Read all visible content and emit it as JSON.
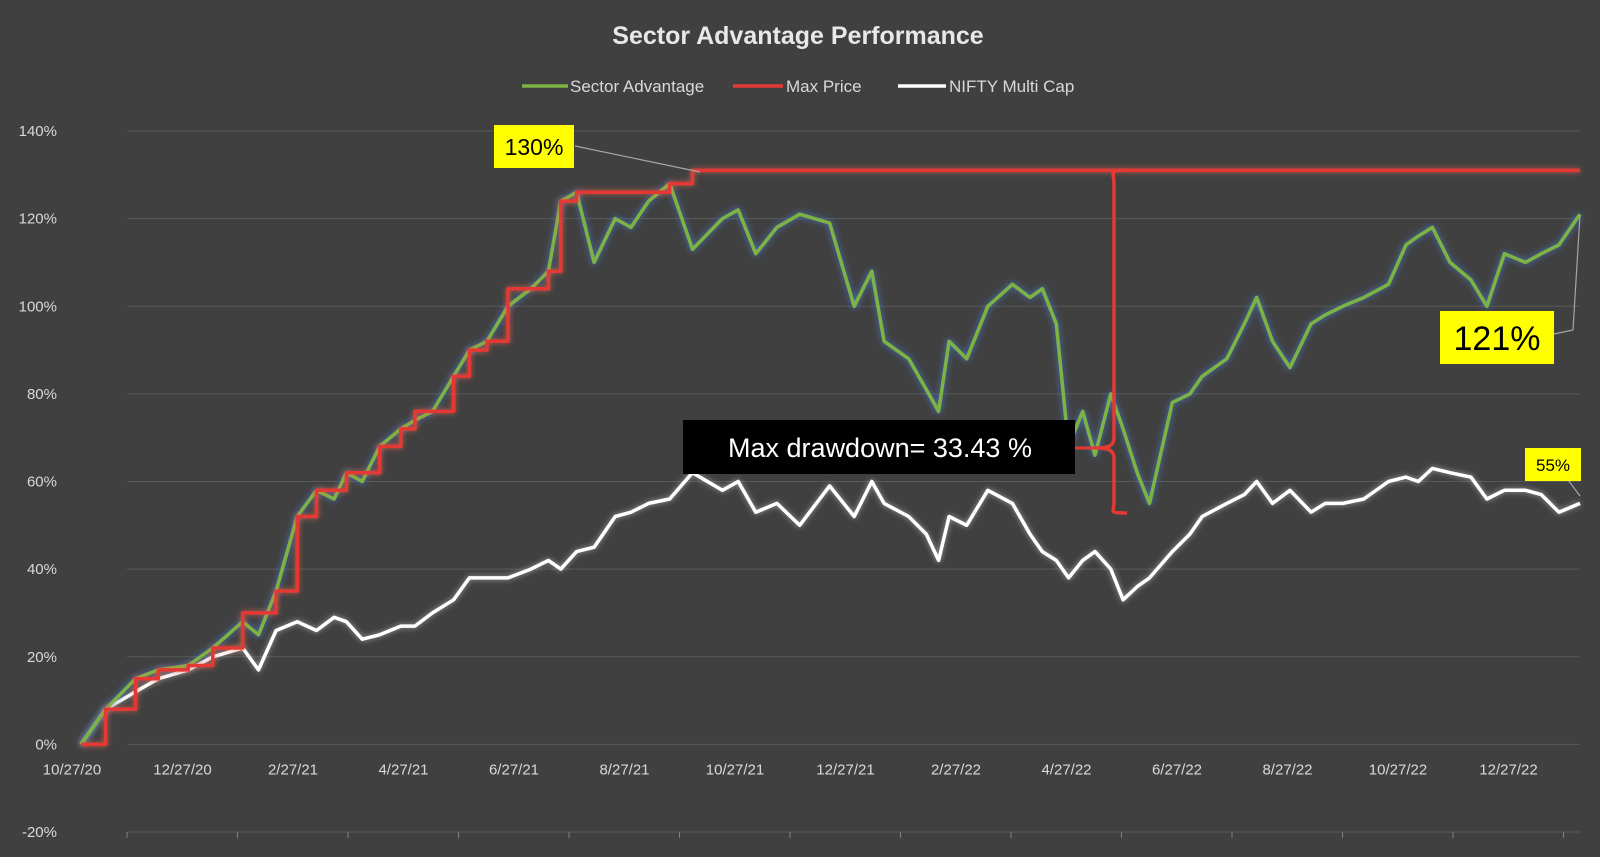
{
  "chart_data": {
    "type": "line",
    "title": "Sector Advantage Performance",
    "xlabel": "",
    "ylabel": "",
    "y_unit": "%",
    "ylim": [
      -20,
      140
    ],
    "y_ticks": [
      -20,
      0,
      20,
      40,
      60,
      80,
      100,
      120,
      140
    ],
    "y_tick_labels": [
      "-20%",
      "0%",
      "20%",
      "40%",
      "60%",
      "80%",
      "100%",
      "120%",
      "140%"
    ],
    "x_range": [
      "2020-10-27",
      "2023-02-27"
    ],
    "x_tick_labels": [
      "10/27/20",
      "12/27/20",
      "2/27/21",
      "4/27/21",
      "6/27/21",
      "8/27/21",
      "10/27/21",
      "12/27/21",
      "2/27/22",
      "4/27/22",
      "6/27/22",
      "8/27/22",
      "10/27/22",
      "12/27/22"
    ],
    "grid": "horizontal",
    "legend_position": "top",
    "series": [
      {
        "name": "Sector Advantage",
        "color": "#7cb342",
        "x": [
          "2020-10-27",
          "2020-11-10",
          "2020-11-27",
          "2020-12-10",
          "2020-12-27",
          "2021-01-10",
          "2021-01-27",
          "2021-02-05",
          "2021-02-15",
          "2021-02-27",
          "2021-03-10",
          "2021-03-20",
          "2021-03-27",
          "2021-04-05",
          "2021-04-15",
          "2021-04-27",
          "2021-05-05",
          "2021-05-15",
          "2021-05-27",
          "2021-06-05",
          "2021-06-15",
          "2021-06-27",
          "2021-07-10",
          "2021-07-20",
          "2021-07-27",
          "2021-08-05",
          "2021-08-15",
          "2021-08-27",
          "2021-09-05",
          "2021-09-15",
          "2021-09-27",
          "2021-10-10",
          "2021-10-27",
          "2021-11-05",
          "2021-11-15",
          "2021-11-27",
          "2021-12-10",
          "2021-12-27",
          "2022-01-10",
          "2022-01-20",
          "2022-01-27",
          "2022-02-10",
          "2022-02-20",
          "2022-02-27",
          "2022-03-05",
          "2022-03-15",
          "2022-03-27",
          "2022-04-10",
          "2022-04-20",
          "2022-04-27",
          "2022-05-05",
          "2022-05-12",
          "2022-05-20",
          "2022-05-27",
          "2022-06-05",
          "2022-06-12",
          "2022-06-20",
          "2022-06-27",
          "2022-07-10",
          "2022-07-20",
          "2022-07-27",
          "2022-08-10",
          "2022-08-20",
          "2022-08-27",
          "2022-09-05",
          "2022-09-15",
          "2022-09-27",
          "2022-10-05",
          "2022-10-15",
          "2022-10-27",
          "2022-11-10",
          "2022-11-20",
          "2022-11-27",
          "2022-12-05",
          "2022-12-15",
          "2022-12-27",
          "2023-01-05",
          "2023-01-15",
          "2023-01-27",
          "2023-02-05",
          "2023-02-15",
          "2023-02-27"
        ],
        "values": [
          0,
          8,
          15,
          17,
          18,
          22,
          28,
          25,
          35,
          52,
          58,
          56,
          62,
          60,
          68,
          72,
          74,
          76,
          84,
          90,
          92,
          100,
          104,
          108,
          124,
          126,
          110,
          120,
          118,
          124,
          128,
          113,
          120,
          122,
          112,
          118,
          121,
          119,
          100,
          108,
          92,
          88,
          81,
          76,
          92,
          88,
          100,
          105,
          102,
          104,
          96,
          68,
          76,
          66,
          80,
          72,
          62,
          55,
          78,
          80,
          84,
          88,
          96,
          102,
          92,
          86,
          96,
          98,
          100,
          102,
          105,
          114,
          116,
          118,
          110,
          106,
          100,
          112,
          110,
          112,
          114,
          121
        ]
      },
      {
        "name": "Max Price",
        "color": "#e53935",
        "x": [
          "2020-10-27",
          "2020-11-10",
          "2020-11-27",
          "2020-12-10",
          "2020-12-27",
          "2021-01-10",
          "2021-01-27",
          "2021-02-05",
          "2021-02-15",
          "2021-02-27",
          "2021-03-10",
          "2021-03-20",
          "2021-03-27",
          "2021-04-05",
          "2021-04-15",
          "2021-04-27",
          "2021-05-05",
          "2021-05-15",
          "2021-05-27",
          "2021-06-05",
          "2021-06-15",
          "2021-06-27",
          "2021-07-10",
          "2021-07-20",
          "2021-07-27",
          "2021-08-05",
          "2021-08-15",
          "2021-08-27",
          "2021-09-05",
          "2021-09-15",
          "2021-09-27",
          "2021-10-10",
          "2021-10-27",
          "2023-02-27"
        ],
        "values": [
          0,
          8,
          15,
          17,
          18,
          22,
          30,
          30,
          35,
          52,
          58,
          58,
          62,
          62,
          68,
          72,
          76,
          76,
          84,
          90,
          92,
          104,
          104,
          108,
          124,
          126,
          126,
          126,
          126,
          126,
          128,
          131,
          131,
          131
        ]
      },
      {
        "name": "NIFTY Multi Cap",
        "color": "#ffffff",
        "x": [
          "2020-10-27",
          "2020-11-10",
          "2020-11-27",
          "2020-12-10",
          "2020-12-27",
          "2021-01-10",
          "2021-01-27",
          "2021-02-05",
          "2021-02-15",
          "2021-02-27",
          "2021-03-10",
          "2021-03-20",
          "2021-03-27",
          "2021-04-05",
          "2021-04-15",
          "2021-04-27",
          "2021-05-05",
          "2021-05-15",
          "2021-05-27",
          "2021-06-05",
          "2021-06-15",
          "2021-06-27",
          "2021-07-10",
          "2021-07-20",
          "2021-07-27",
          "2021-08-05",
          "2021-08-15",
          "2021-08-27",
          "2021-09-05",
          "2021-09-15",
          "2021-09-27",
          "2021-10-10",
          "2021-10-27",
          "2021-11-05",
          "2021-11-15",
          "2021-11-27",
          "2021-12-10",
          "2021-12-27",
          "2022-01-10",
          "2022-01-20",
          "2022-01-27",
          "2022-02-10",
          "2022-02-20",
          "2022-02-27",
          "2022-03-05",
          "2022-03-15",
          "2022-03-27",
          "2022-04-10",
          "2022-04-20",
          "2022-04-27",
          "2022-05-05",
          "2022-05-12",
          "2022-05-20",
          "2022-05-27",
          "2022-06-05",
          "2022-06-12",
          "2022-06-20",
          "2022-06-27",
          "2022-07-10",
          "2022-07-20",
          "2022-07-27",
          "2022-08-10",
          "2022-08-20",
          "2022-08-27",
          "2022-09-05",
          "2022-09-15",
          "2022-09-27",
          "2022-10-05",
          "2022-10-15",
          "2022-10-27",
          "2022-11-10",
          "2022-11-20",
          "2022-11-27",
          "2022-12-05",
          "2022-12-15",
          "2022-12-27",
          "2023-01-05",
          "2023-01-15",
          "2023-01-27",
          "2023-02-05",
          "2023-02-15",
          "2023-02-27"
        ],
        "values": [
          0,
          8,
          12,
          15,
          17,
          20,
          22,
          17,
          26,
          28,
          26,
          29,
          28,
          24,
          25,
          27,
          27,
          30,
          33,
          38,
          38,
          38,
          40,
          42,
          40,
          44,
          45,
          52,
          53,
          55,
          56,
          62,
          58,
          60,
          53,
          55,
          50,
          59,
          52,
          60,
          55,
          52,
          48,
          42,
          52,
          50,
          58,
          55,
          48,
          44,
          42,
          38,
          42,
          44,
          40,
          33,
          36,
          38,
          44,
          48,
          52,
          55,
          57,
          60,
          55,
          58,
          53,
          55,
          55,
          56,
          60,
          61,
          60,
          63,
          62,
          61,
          56,
          58,
          58,
          57,
          53,
          55
        ]
      }
    ],
    "annotations": [
      {
        "text": "130%",
        "style": "yellow-callout"
      },
      {
        "text": "121%",
        "style": "yellow-callout"
      },
      {
        "text": "55%",
        "style": "yellow-callout"
      },
      {
        "text": "Max drawdown= 33.43 %",
        "style": "black-box"
      }
    ]
  }
}
